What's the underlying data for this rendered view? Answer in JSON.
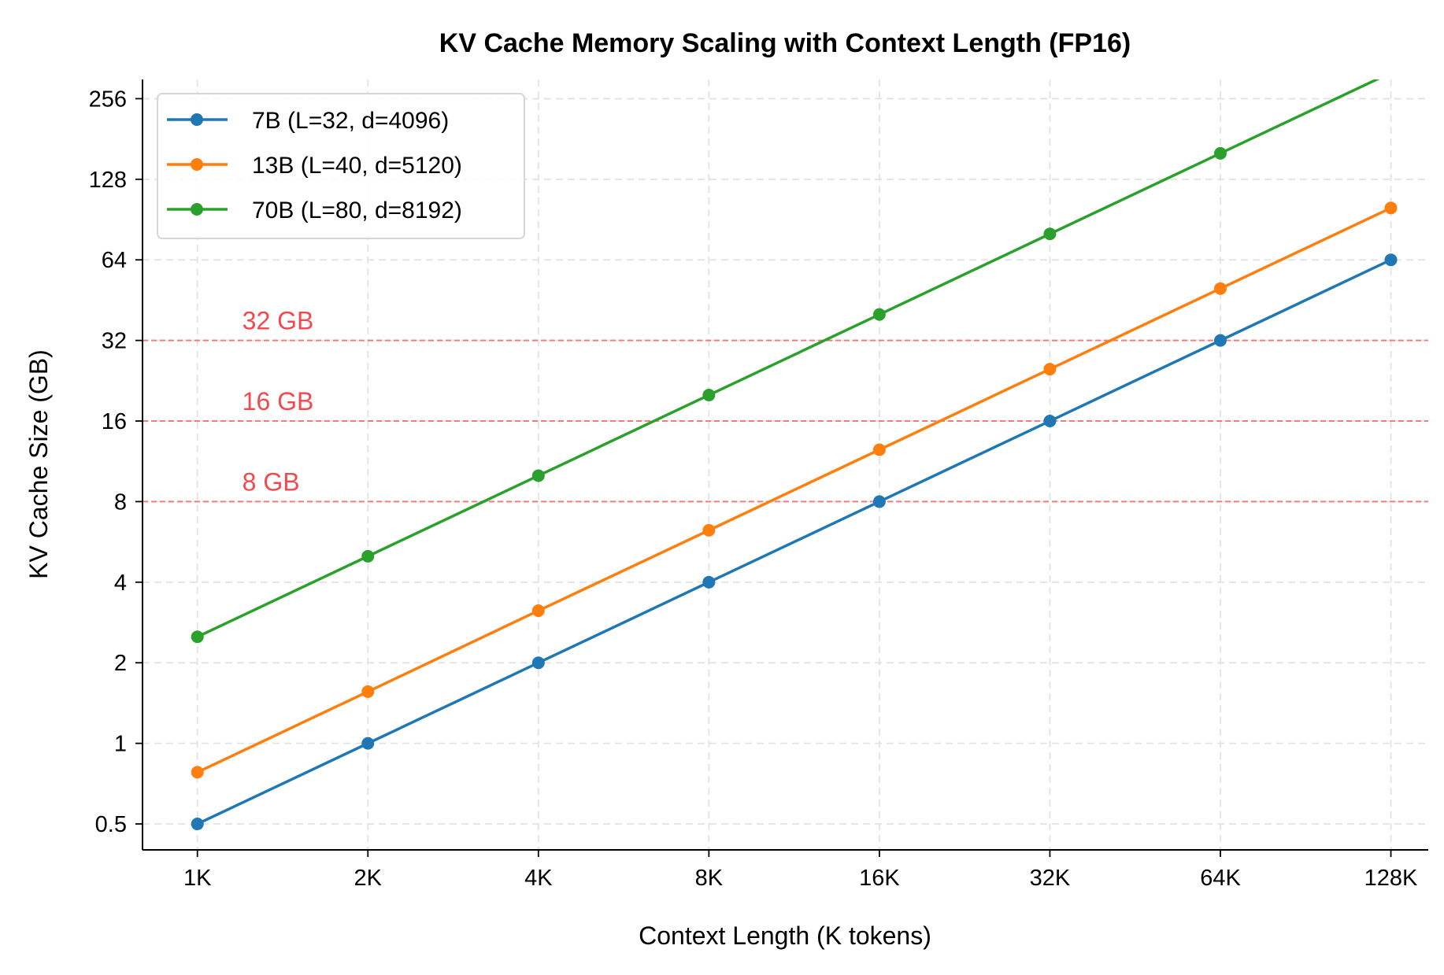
{
  "chart_data": {
    "type": "line",
    "title": "KV Cache Memory Scaling with Context Length (FP16)",
    "xlabel": "Context Length (K tokens)",
    "ylabel": "KV Cache Size (GB)",
    "x_scale": "log2",
    "y_scale": "log2",
    "x": [
      1,
      2,
      4,
      8,
      16,
      32,
      64,
      128
    ],
    "x_tick_labels": [
      "1K",
      "2K",
      "4K",
      "8K",
      "16K",
      "32K",
      "64K",
      "128K"
    ],
    "y_ticks": [
      0.5,
      1,
      2,
      4,
      8,
      16,
      32,
      64,
      128,
      256
    ],
    "y_tick_labels": [
      "0.5",
      "1",
      "2",
      "4",
      "8",
      "16",
      "32",
      "64",
      "128",
      "256"
    ],
    "xlim": [
      0.8,
      149
    ],
    "ylim": [
      0.4,
      302
    ],
    "grid": true,
    "legend_position": "top-left",
    "series": [
      {
        "name": "7B (L=32, d=4096)",
        "color": "#1f77b4",
        "values": [
          0.5,
          1,
          2,
          4,
          8,
          16,
          32,
          64
        ]
      },
      {
        "name": "13B (L=40, d=5120)",
        "color": "#ff7f0e",
        "values": [
          0.78,
          1.56,
          3.13,
          6.25,
          12.5,
          25,
          50,
          100
        ]
      },
      {
        "name": "70B (L=80, d=8192)",
        "color": "#2ca02c",
        "values": [
          2.5,
          5,
          10,
          20,
          40,
          80,
          160,
          320
        ]
      }
    ],
    "reference_lines": [
      {
        "value": 8,
        "label": "8 GB",
        "color": "#f0696b"
      },
      {
        "value": 16,
        "label": "16 GB",
        "color": "#f0696b"
      },
      {
        "value": 32,
        "label": "32 GB",
        "color": "#f0696b"
      }
    ]
  }
}
